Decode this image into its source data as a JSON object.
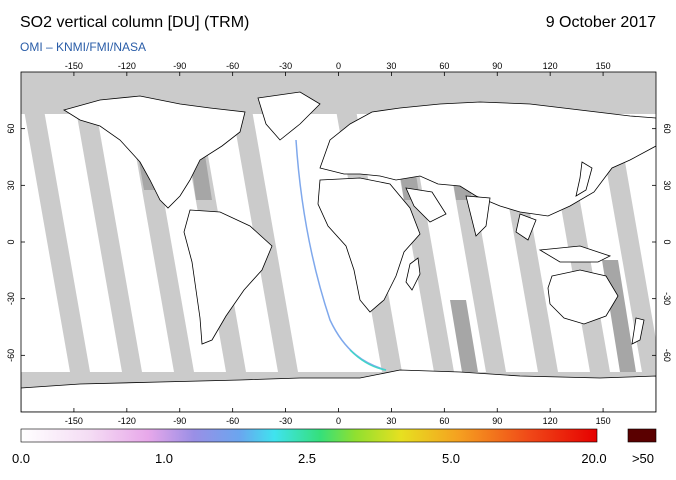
{
  "header": {
    "title": "SO2 vertical column [DU] (TRM)",
    "date": "9 October 2017",
    "credit": "OMI  –  KNMI/FMI/NASA"
  },
  "map": {
    "projection": "equirectangular",
    "lon_ticks": [
      "-150",
      "-120",
      "-90",
      "-60",
      "-30",
      "0",
      "30",
      "60",
      "90",
      "120",
      "150"
    ],
    "lat_ticks": [
      "60",
      "30",
      "0",
      "-30",
      "-60"
    ],
    "colors": {
      "no_data": "#cbcbcb",
      "orbit_gap_dark": "#a6a6a6",
      "background": "#ffffff",
      "coast": "#000000"
    }
  },
  "colorbar": {
    "labels": [
      "0.0",
      "1.0",
      "2.5",
      "5.0",
      "20.0"
    ],
    "overflow_label": ">50",
    "overflow_color": "#5a0000"
  }
}
